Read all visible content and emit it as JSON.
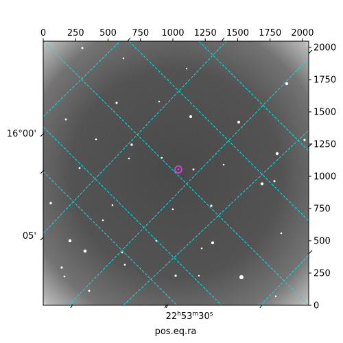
{
  "figure": {
    "x_axis_top": {
      "ticks": [
        "0",
        "250",
        "500",
        "750",
        "1000",
        "1250",
        "1500",
        "1750",
        "2000"
      ],
      "tick_values": [
        0,
        250,
        500,
        750,
        1000,
        1250,
        1500,
        1750,
        2000
      ]
    },
    "y_axis_right": {
      "ticks": [
        "0",
        "250",
        "500",
        "750",
        "1000",
        "1250",
        "1500",
        "1750",
        "2000"
      ],
      "tick_values": [
        0,
        250,
        500,
        750,
        1000,
        1250,
        1500,
        1750,
        2000
      ]
    },
    "ra_label": {
      "base": "22",
      "h": "h",
      "mid": "53",
      "m": "m",
      "sec": "30",
      "s": "s"
    },
    "dec_labels": [
      "16°00'",
      "05'"
    ],
    "x_title": "pos.eq.ra",
    "image_extent": [
      0,
      2048
    ],
    "grid_color": "#00e5e5",
    "marker_color": "#cc44cc"
  }
}
